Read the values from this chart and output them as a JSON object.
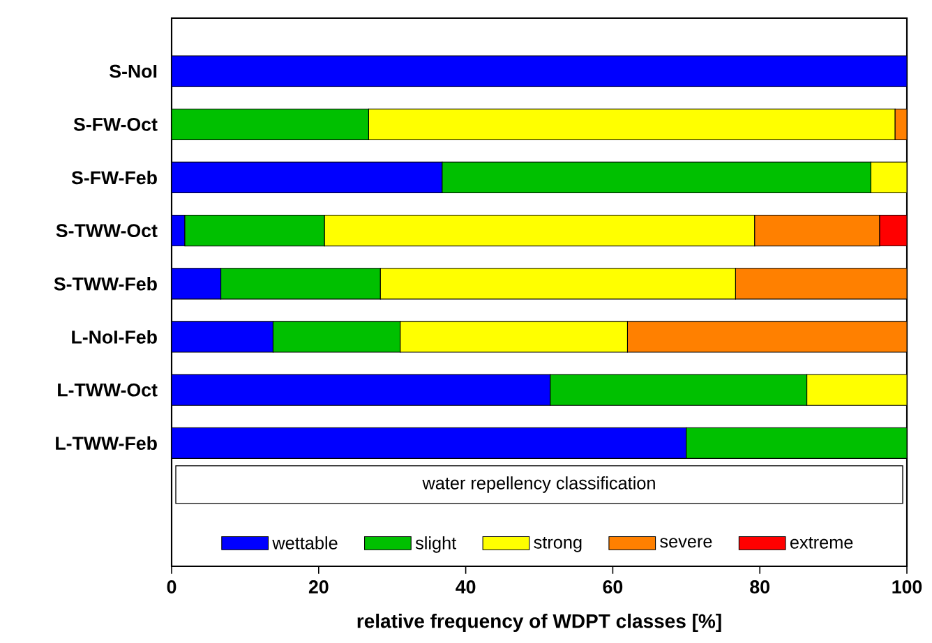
{
  "chart_data": {
    "type": "bar",
    "orientation": "horizontal",
    "stacked": true,
    "categories": [
      "S-NoI",
      "S-FW-Oct",
      "S-FW-Feb",
      "S-TWW-Oct",
      "S-TWW-Feb",
      "L-NoI-Feb",
      "L-TWW-Oct",
      "L-TWW-Feb"
    ],
    "series": [
      {
        "name": "wettable",
        "color": "#0000ff",
        "values": [
          100,
          null,
          36.8,
          1.8,
          6.7,
          13.8,
          51.5,
          70.0
        ]
      },
      {
        "name": "slight",
        "color": "#00c000",
        "values": [
          null,
          26.8,
          58.3,
          19.0,
          21.7,
          17.3,
          34.9,
          30.0
        ]
      },
      {
        "name": "strong",
        "color": "#ffff00",
        "values": [
          null,
          71.6,
          4.9,
          58.5,
          48.3,
          30.9,
          13.6,
          null
        ]
      },
      {
        "name": "severe",
        "color": "#ff8000",
        "values": [
          null,
          1.6,
          null,
          17.0,
          23.3,
          38.0,
          null,
          null
        ]
      },
      {
        "name": "extreme",
        "color": "#ff0000",
        "values": [
          null,
          null,
          null,
          3.7,
          null,
          null,
          null,
          null
        ]
      }
    ],
    "xlabel": "relative frequency of WDPT classes [%]",
    "legend_title": "water repellency classification",
    "legend": "bottom",
    "xlim": [
      0,
      100
    ],
    "xticks": [
      0,
      20,
      40,
      60,
      80,
      100
    ]
  }
}
